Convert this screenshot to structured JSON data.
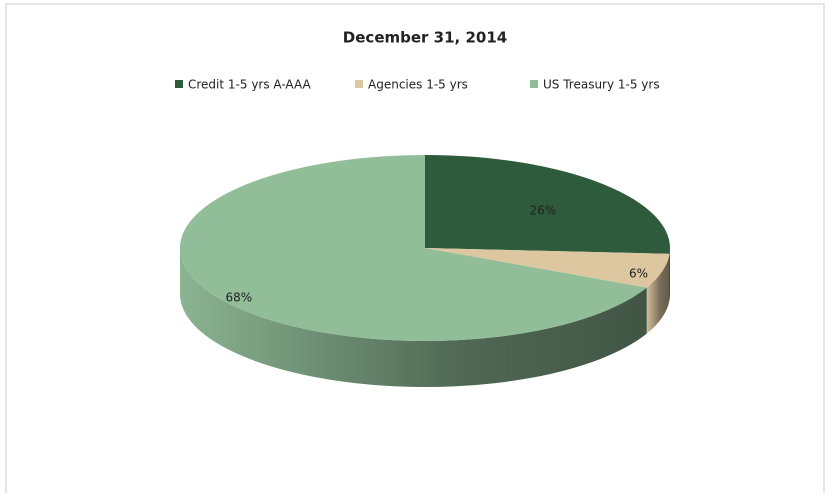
{
  "chart_data": {
    "type": "pie",
    "title": "December 31, 2014",
    "categories": [
      "Credit 1-5 yrs A-AAA",
      "Agencies 1-5 yrs",
      "US Treasury 1-5 yrs"
    ],
    "values": [
      26,
      6,
      68
    ],
    "value_labels": [
      "26%",
      "6%",
      "68%"
    ],
    "colors": [
      "#2d5b3b",
      "#dcc7a0",
      "#92bd99"
    ],
    "legend": "top"
  }
}
